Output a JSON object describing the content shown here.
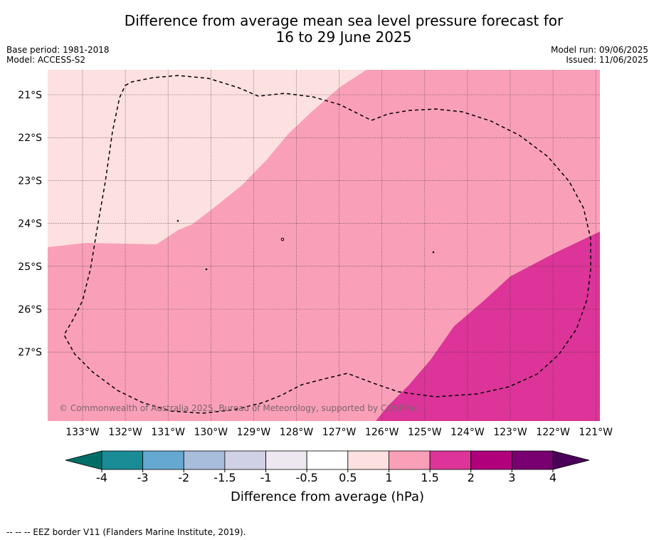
{
  "title": {
    "line1": "Difference from average mean sea level pressure forecast for",
    "line2": "16 to 29 June 2025"
  },
  "meta": {
    "base_period": "Base period: 1981-2018",
    "model": "Model: ACCESS-S2",
    "model_run": "Model run: 09/06/2025",
    "issued": "Issued: 11/06/2025"
  },
  "map": {
    "lat_labels": [
      "21°S",
      "22°S",
      "23°S",
      "24°S",
      "25°S",
      "26°S",
      "27°S"
    ],
    "lon_labels": [
      "133°W",
      "132°W",
      "131°W",
      "130°W",
      "129°W",
      "128°W",
      "127°W",
      "126°W",
      "125°W",
      "124°W",
      "123°W",
      "122°W",
      "121°W"
    ],
    "copyright": "© Commonwealth of Australia 2025, Bureau of Meteorology, supported by COSPPac",
    "fill_colors": {
      "0.5_to_1": "#fde0e0",
      "1_to_1.5": "#f9a0b8",
      "1.5_to_2": "#dc3498"
    }
  },
  "colorbar": {
    "tick_labels": [
      "-4",
      "-3",
      "-2",
      "-1.5",
      "-1",
      "-0.5",
      "0.5",
      "1",
      "1.5",
      "2",
      "3",
      "4"
    ],
    "colors": [
      "#1a8c96",
      "#65a8d0",
      "#a8bcdc",
      "#d0d0e6",
      "#ede8f0",
      "#ffffff",
      "#fde0e0",
      "#f9a0b8",
      "#dc3498",
      "#b0007c",
      "#780070"
    ],
    "under_color": "#006e66",
    "over_color": "#4a0058",
    "label": "Difference from average (hPa)"
  },
  "footnote": "-- -- -- EEZ border V11 (Flanders Marine Institute, 2019)."
}
